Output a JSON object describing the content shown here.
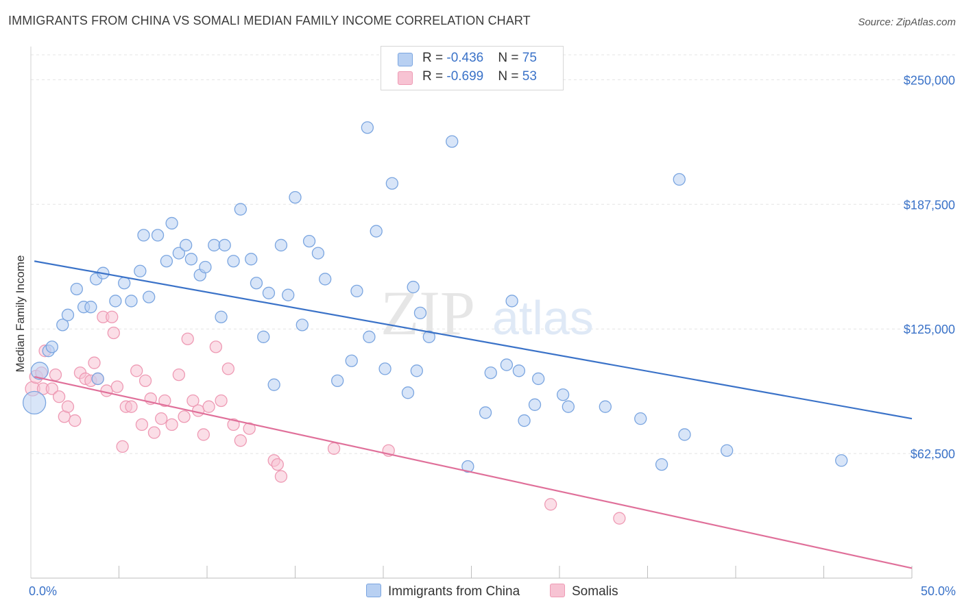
{
  "header": {
    "title": "IMMIGRANTS FROM CHINA VS SOMALI MEDIAN FAMILY INCOME CORRELATION CHART",
    "source": "Source: ZipAtlas.com"
  },
  "legend": {
    "items": [
      {
        "r_label": "R = ",
        "r_value": "-0.436",
        "n_label": "N = ",
        "n_value": "75"
      },
      {
        "r_label": "R = ",
        "r_value": "-0.699",
        "n_label": "N = ",
        "n_value": "53"
      }
    ]
  },
  "colors": {
    "china_fill": "#b8d0f2",
    "china_stroke": "#7aa5e0",
    "china_line": "#3a72c8",
    "somali_fill": "#f7c3d3",
    "somali_stroke": "#ee9ab4",
    "somali_line": "#e0709a",
    "grid": "#e4e4e4",
    "axis_text": "#3a72c8"
  },
  "watermark": {
    "zip": "ZIP",
    "atlas": "atlas"
  },
  "chart_data": {
    "type": "scatter",
    "ylabel": "Median Family Income",
    "xlim": [
      0,
      50
    ],
    "ylim": [
      0,
      262500
    ],
    "x_tick_labels": {
      "min": "0.0%",
      "max": "50.0%"
    },
    "y_ticks": [
      {
        "value": 62500,
        "label": "$62,500"
      },
      {
        "value": 125000,
        "label": "$125,000"
      },
      {
        "value": 187500,
        "label": "$187,500"
      },
      {
        "value": 250000,
        "label": "$250,000"
      }
    ],
    "series": [
      {
        "name": "Immigrants from China",
        "trend": {
          "x": [
            0.2,
            50
          ],
          "y": [
            159000,
            80000
          ]
        },
        "points": [
          [
            0.2,
            88000,
            30
          ],
          [
            0.5,
            104000,
            22
          ],
          [
            1.0,
            114000,
            14
          ],
          [
            1.2,
            116000,
            14
          ],
          [
            1.8,
            127000,
            14
          ],
          [
            2.1,
            132000,
            14
          ],
          [
            2.6,
            145000,
            14
          ],
          [
            3.0,
            136000,
            14
          ],
          [
            3.4,
            136000,
            14
          ],
          [
            3.8,
            100000,
            14
          ],
          [
            3.7,
            150000,
            14
          ],
          [
            4.1,
            153000,
            14
          ],
          [
            4.8,
            139000,
            14
          ],
          [
            5.3,
            148000,
            14
          ],
          [
            5.7,
            139000,
            14
          ],
          [
            6.2,
            154000,
            14
          ],
          [
            6.4,
            172000,
            14
          ],
          [
            6.7,
            141000,
            14
          ],
          [
            7.2,
            172000,
            14
          ],
          [
            7.7,
            159000,
            14
          ],
          [
            8.0,
            178000,
            14
          ],
          [
            8.4,
            163000,
            14
          ],
          [
            8.8,
            167000,
            14
          ],
          [
            9.1,
            160000,
            14
          ],
          [
            9.6,
            152000,
            14
          ],
          [
            9.9,
            156000,
            14
          ],
          [
            10.4,
            167000,
            14
          ],
          [
            10.8,
            131000,
            14
          ],
          [
            11.0,
            167000,
            14
          ],
          [
            11.5,
            159000,
            14
          ],
          [
            11.9,
            185000,
            14
          ],
          [
            12.5,
            160000,
            14
          ],
          [
            12.8,
            148000,
            14
          ],
          [
            13.2,
            121000,
            14
          ],
          [
            13.5,
            143000,
            14
          ],
          [
            13.8,
            97000,
            14
          ],
          [
            14.2,
            167000,
            14
          ],
          [
            14.6,
            142000,
            14
          ],
          [
            15.0,
            191000,
            14
          ],
          [
            15.4,
            127000,
            14
          ],
          [
            15.8,
            169000,
            14
          ],
          [
            16.3,
            163000,
            14
          ],
          [
            16.7,
            150000,
            14
          ],
          [
            17.4,
            99000,
            14
          ],
          [
            18.2,
            109000,
            14
          ],
          [
            18.5,
            144000,
            14
          ],
          [
            19.1,
            226000,
            14
          ],
          [
            19.2,
            121000,
            14
          ],
          [
            19.6,
            174000,
            14
          ],
          [
            20.1,
            105000,
            14
          ],
          [
            20.5,
            198000,
            14
          ],
          [
            21.4,
            93000,
            14
          ],
          [
            21.7,
            146000,
            14
          ],
          [
            21.9,
            104000,
            14
          ],
          [
            22.1,
            133000,
            14
          ],
          [
            22.6,
            121000,
            14
          ],
          [
            23.9,
            219000,
            14
          ],
          [
            24.8,
            56000,
            14
          ],
          [
            25.8,
            83000,
            14
          ],
          [
            26.1,
            103000,
            14
          ],
          [
            27.0,
            107000,
            14
          ],
          [
            27.3,
            139000,
            14
          ],
          [
            27.7,
            104000,
            14
          ],
          [
            28.0,
            79000,
            14
          ],
          [
            28.6,
            87000,
            14
          ],
          [
            28.8,
            100000,
            14
          ],
          [
            30.2,
            92000,
            14
          ],
          [
            30.5,
            86000,
            14
          ],
          [
            32.6,
            86000,
            14
          ],
          [
            34.6,
            80000,
            14
          ],
          [
            35.8,
            57000,
            14
          ],
          [
            36.8,
            200000,
            14
          ],
          [
            37.1,
            72000,
            14
          ],
          [
            39.5,
            64000,
            14
          ],
          [
            46.0,
            59000,
            14
          ]
        ]
      },
      {
        "name": "Somalis",
        "trend": {
          "x": [
            0.2,
            50
          ],
          "y": [
            101000,
            5000
          ]
        },
        "points": [
          [
            0.1,
            95000,
            18
          ],
          [
            0.3,
            101000,
            16
          ],
          [
            0.6,
            103000,
            14
          ],
          [
            0.7,
            95000,
            14
          ],
          [
            0.8,
            114000,
            14
          ],
          [
            1.2,
            95000,
            14
          ],
          [
            1.4,
            102000,
            14
          ],
          [
            1.6,
            91000,
            14
          ],
          [
            1.9,
            81000,
            14
          ],
          [
            2.1,
            86000,
            14
          ],
          [
            2.5,
            79000,
            14
          ],
          [
            2.8,
            103000,
            14
          ],
          [
            3.1,
            100000,
            14
          ],
          [
            3.4,
            99000,
            14
          ],
          [
            3.6,
            108000,
            14
          ],
          [
            3.8,
            100000,
            14
          ],
          [
            4.1,
            131000,
            14
          ],
          [
            4.3,
            94000,
            14
          ],
          [
            4.6,
            131000,
            14
          ],
          [
            4.7,
            123000,
            14
          ],
          [
            4.9,
            96000,
            14
          ],
          [
            5.2,
            66000,
            14
          ],
          [
            5.4,
            86000,
            14
          ],
          [
            5.7,
            86000,
            14
          ],
          [
            6.0,
            104000,
            14
          ],
          [
            6.3,
            77000,
            14
          ],
          [
            6.5,
            99000,
            14
          ],
          [
            6.8,
            90000,
            14
          ],
          [
            7.0,
            73000,
            14
          ],
          [
            7.4,
            80000,
            14
          ],
          [
            7.6,
            89000,
            14
          ],
          [
            8.0,
            77000,
            14
          ],
          [
            8.4,
            102000,
            14
          ],
          [
            8.7,
            81000,
            14
          ],
          [
            8.9,
            120000,
            14
          ],
          [
            9.2,
            89000,
            14
          ],
          [
            9.5,
            84000,
            14
          ],
          [
            9.8,
            72000,
            14
          ],
          [
            10.1,
            86000,
            14
          ],
          [
            10.5,
            116000,
            14
          ],
          [
            10.8,
            89000,
            14
          ],
          [
            11.2,
            105000,
            14
          ],
          [
            11.5,
            77000,
            14
          ],
          [
            11.9,
            69000,
            14
          ],
          [
            12.4,
            75000,
            14
          ],
          [
            13.8,
            59000,
            14
          ],
          [
            14.0,
            57000,
            14
          ],
          [
            14.2,
            51000,
            14
          ],
          [
            17.2,
            65000,
            14
          ],
          [
            20.3,
            64000,
            14
          ],
          [
            29.5,
            37000,
            14
          ],
          [
            33.4,
            30000,
            14
          ],
          [
            16.2,
            98000,
            0
          ]
        ]
      }
    ]
  }
}
